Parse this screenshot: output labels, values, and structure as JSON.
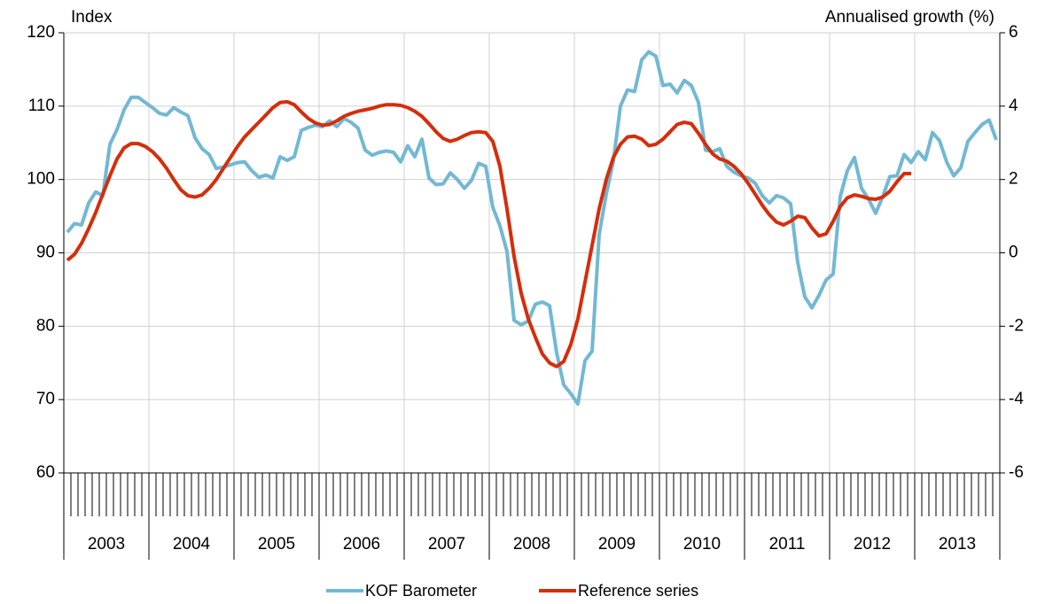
{
  "chart_data": {
    "type": "line",
    "y_label": "Index",
    "y2_label": "Annualised growth (%)",
    "x": [
      "2003-01",
      "2003-02",
      "2003-03",
      "2003-04",
      "2003-05",
      "2003-06",
      "2003-07",
      "2003-08",
      "2003-09",
      "2003-10",
      "2003-11",
      "2003-12",
      "2004-01",
      "2004-02",
      "2004-03",
      "2004-04",
      "2004-05",
      "2004-06",
      "2004-07",
      "2004-08",
      "2004-09",
      "2004-10",
      "2004-11",
      "2004-12",
      "2005-01",
      "2005-02",
      "2005-03",
      "2005-04",
      "2005-05",
      "2005-06",
      "2005-07",
      "2005-08",
      "2005-09",
      "2005-10",
      "2005-11",
      "2005-12",
      "2006-01",
      "2006-02",
      "2006-03",
      "2006-04",
      "2006-05",
      "2006-06",
      "2006-07",
      "2006-08",
      "2006-09",
      "2006-10",
      "2006-11",
      "2006-12",
      "2007-01",
      "2007-02",
      "2007-03",
      "2007-04",
      "2007-05",
      "2007-06",
      "2007-07",
      "2007-08",
      "2007-09",
      "2007-10",
      "2007-11",
      "2007-12",
      "2008-01",
      "2008-02",
      "2008-03",
      "2008-04",
      "2008-05",
      "2008-06",
      "2008-07",
      "2008-08",
      "2008-09",
      "2008-10",
      "2008-11",
      "2008-12",
      "2009-01",
      "2009-02",
      "2009-03",
      "2009-04",
      "2009-05",
      "2009-06",
      "2009-07",
      "2009-08",
      "2009-09",
      "2009-10",
      "2009-11",
      "2009-12",
      "2010-01",
      "2010-02",
      "2010-03",
      "2010-04",
      "2010-05",
      "2010-06",
      "2010-07",
      "2010-08",
      "2010-09",
      "2010-10",
      "2010-11",
      "2010-12",
      "2011-01",
      "2011-02",
      "2011-03",
      "2011-04",
      "2011-05",
      "2011-06",
      "2011-07",
      "2011-08",
      "2011-09",
      "2011-10",
      "2011-11",
      "2011-12",
      "2012-01",
      "2012-02",
      "2012-03",
      "2012-04",
      "2012-05",
      "2012-06",
      "2012-07",
      "2012-08",
      "2012-09",
      "2012-10",
      "2012-11",
      "2012-12",
      "2013-01",
      "2013-02",
      "2013-03",
      "2013-04",
      "2013-05",
      "2013-06",
      "2013-07",
      "2013-08",
      "2013-09",
      "2013-10",
      "2013-11",
      "2013-12"
    ],
    "years": [
      "2003",
      "2004",
      "2005",
      "2006",
      "2007",
      "2008",
      "2009",
      "2010",
      "2011",
      "2012",
      "2013"
    ],
    "series": [
      {
        "name": "KOF Barometer",
        "color": "#72b8d4",
        "values": [
          92.8,
          94,
          93.8,
          96.8,
          98.3,
          97.8,
          104.8,
          106.8,
          109.5,
          111.2,
          111.2,
          110.5,
          109.8,
          109,
          108.8,
          109.8,
          109.2,
          108.7,
          105.7,
          104.2,
          103.4,
          101.5,
          101.7,
          102,
          102.3,
          102.4,
          101.2,
          100.3,
          100.6,
          100.2,
          103.1,
          102.6,
          103.1,
          106.7,
          107.1,
          107.4,
          107.2,
          108,
          107.2,
          108.3,
          107.8,
          107,
          104,
          103.3,
          103.7,
          103.9,
          103.7,
          102.4,
          104.6,
          103.1,
          105.5,
          100.2,
          99.3,
          99.4,
          100.9,
          100,
          98.8,
          99.9,
          102.2,
          101.8,
          96.2,
          93.7,
          90.2,
          80.8,
          80.2,
          80.7,
          83,
          83.3,
          82.8,
          76.4,
          72,
          70.8,
          69.4,
          75.3,
          76.6,
          92.5,
          98,
          102.5,
          110,
          112.2,
          112,
          116.3,
          117.4,
          116.8,
          112.8,
          113,
          111.8,
          113.5,
          112.8,
          110.5,
          104,
          103.8,
          104.2,
          101.8,
          101,
          100.5,
          100.2,
          99.5,
          97.8,
          96.8,
          97.8,
          97.5,
          96.7,
          88.7,
          84,
          82.5,
          84.2,
          86.3,
          87.1,
          97.7,
          101.2,
          103,
          98.8,
          97.3,
          95.4,
          97.7,
          100.4,
          100.5,
          103.4,
          102.3,
          103.8,
          102.7,
          106.4,
          105.3,
          102.4,
          100.5,
          101.6,
          105.2,
          106.4,
          107.5,
          108.1,
          105.4
        ]
      },
      {
        "name": "Reference series",
        "color": "#d62d0a",
        "axis": "y2",
        "values": [
          -0.2,
          -0.04,
          0.26,
          0.66,
          1.1,
          1.6,
          2.1,
          2.56,
          2.86,
          2.98,
          2.98,
          2.9,
          2.76,
          2.56,
          2.3,
          2,
          1.72,
          1.56,
          1.52,
          1.58,
          1.76,
          2,
          2.3,
          2.6,
          2.9,
          3.16,
          3.36,
          3.56,
          3.76,
          3.96,
          4.1,
          4.12,
          4.04,
          3.84,
          3.66,
          3.54,
          3.48,
          3.5,
          3.6,
          3.72,
          3.8,
          3.86,
          3.9,
          3.94,
          4,
          4.04,
          4.04,
          4.02,
          3.96,
          3.86,
          3.72,
          3.52,
          3.3,
          3.12,
          3.04,
          3.1,
          3.2,
          3.28,
          3.3,
          3.28,
          3.04,
          2.36,
          1.2,
          -0.1,
          -1.1,
          -1.8,
          -2.3,
          -2.76,
          -3,
          -3.1,
          -2.96,
          -2.5,
          -1.8,
          -0.8,
          0.2,
          1.2,
          2,
          2.6,
          2.96,
          3.16,
          3.18,
          3.1,
          2.92,
          2.96,
          3.1,
          3.3,
          3.5,
          3.56,
          3.52,
          3.26,
          2.96,
          2.7,
          2.56,
          2.5,
          2.36,
          2.16,
          1.9,
          1.6,
          1.3,
          1.04,
          0.84,
          0.76,
          0.86,
          1,
          0.96,
          0.68,
          0.46,
          0.52,
          0.86,
          1.26,
          1.5,
          1.58,
          1.54,
          1.48,
          1.46,
          1.52,
          1.68,
          1.94,
          2.16,
          2.16,
          null,
          null,
          null,
          null,
          null,
          null,
          null,
          null,
          null,
          null,
          null,
          null
        ]
      }
    ],
    "ylim": [
      60,
      120
    ],
    "yticks": [
      60,
      70,
      80,
      90,
      100,
      110,
      120
    ],
    "y2lim": [
      -6,
      6
    ],
    "y2ticks": [
      -6,
      -4,
      -2,
      0,
      2,
      4,
      6
    ],
    "grid": true,
    "legend": "bottom"
  }
}
